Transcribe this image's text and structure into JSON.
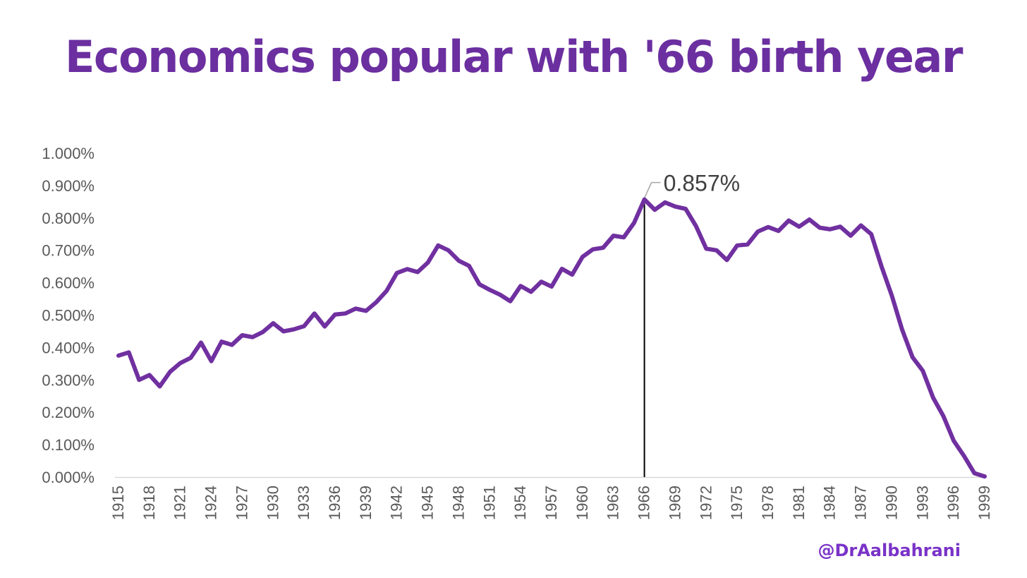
{
  "chart_data": {
    "type": "line",
    "title": "Economics popular with '66 birth year",
    "xlabel": "",
    "ylabel": "",
    "ylim": [
      0,
      0.01
    ],
    "y_ticks": [
      "0.000%",
      "0.100%",
      "0.200%",
      "0.300%",
      "0.400%",
      "0.500%",
      "0.600%",
      "0.700%",
      "0.800%",
      "0.900%",
      "1.000%"
    ],
    "x_tick_labels": [
      "1915",
      "1918",
      "1921",
      "1924",
      "1927",
      "1930",
      "1933",
      "1936",
      "1939",
      "1942",
      "1945",
      "1948",
      "1951",
      "1954",
      "1957",
      "1960",
      "1963",
      "1966",
      "1969",
      "1972",
      "1975",
      "1978",
      "1981",
      "1984",
      "1987",
      "1990",
      "1993",
      "1996",
      "1999"
    ],
    "grid": false,
    "legend": "none",
    "line_color": "#7030a0",
    "x": [
      1915,
      1916,
      1917,
      1918,
      1919,
      1920,
      1921,
      1922,
      1923,
      1924,
      1925,
      1926,
      1927,
      1928,
      1929,
      1930,
      1931,
      1932,
      1933,
      1934,
      1935,
      1936,
      1937,
      1938,
      1939,
      1940,
      1941,
      1942,
      1943,
      1944,
      1945,
      1946,
      1947,
      1948,
      1949,
      1950,
      1951,
      1952,
      1953,
      1954,
      1955,
      1956,
      1957,
      1958,
      1959,
      1960,
      1961,
      1962,
      1963,
      1964,
      1965,
      1966,
      1967,
      1968,
      1969,
      1970,
      1971,
      1972,
      1973,
      1974,
      1975,
      1976,
      1977,
      1978,
      1979,
      1980,
      1981,
      1982,
      1983,
      1984,
      1985,
      1986,
      1987,
      1988,
      1989,
      1990,
      1991,
      1992,
      1993,
      1994,
      1995,
      1996,
      1997,
      1998,
      1999
    ],
    "series": [
      {
        "values": [
          0.00375,
          0.00385,
          0.003,
          0.00315,
          0.0028,
          0.00325,
          0.00352,
          0.00368,
          0.00415,
          0.00358,
          0.00418,
          0.00408,
          0.00438,
          0.00432,
          0.00448,
          0.00475,
          0.0045,
          0.00456,
          0.00466,
          0.00505,
          0.00465,
          0.00502,
          0.00505,
          0.0052,
          0.00513,
          0.0054,
          0.00575,
          0.0063,
          0.00642,
          0.00633,
          0.00662,
          0.00715,
          0.007,
          0.00668,
          0.00652,
          0.00595,
          0.00578,
          0.00563,
          0.00543,
          0.0059,
          0.00572,
          0.00603,
          0.00588,
          0.00643,
          0.00625,
          0.0068,
          0.00703,
          0.00708,
          0.00745,
          0.0074,
          0.00785,
          0.00857,
          0.00825,
          0.00848,
          0.00835,
          0.00828,
          0.00775,
          0.00705,
          0.007,
          0.0067,
          0.00715,
          0.00718,
          0.00758,
          0.00772,
          0.0076,
          0.00792,
          0.00773,
          0.00795,
          0.0077,
          0.00765,
          0.00773,
          0.00745,
          0.00777,
          0.0075,
          0.0065,
          0.0056,
          0.00455,
          0.0037,
          0.00328,
          0.00245,
          0.00188,
          0.00112,
          0.00065,
          0.00012,
          2e-05
        ]
      }
    ],
    "annotation": {
      "x": 1966,
      "label": "0.857%"
    }
  },
  "credit": "@DrAalbahrani"
}
